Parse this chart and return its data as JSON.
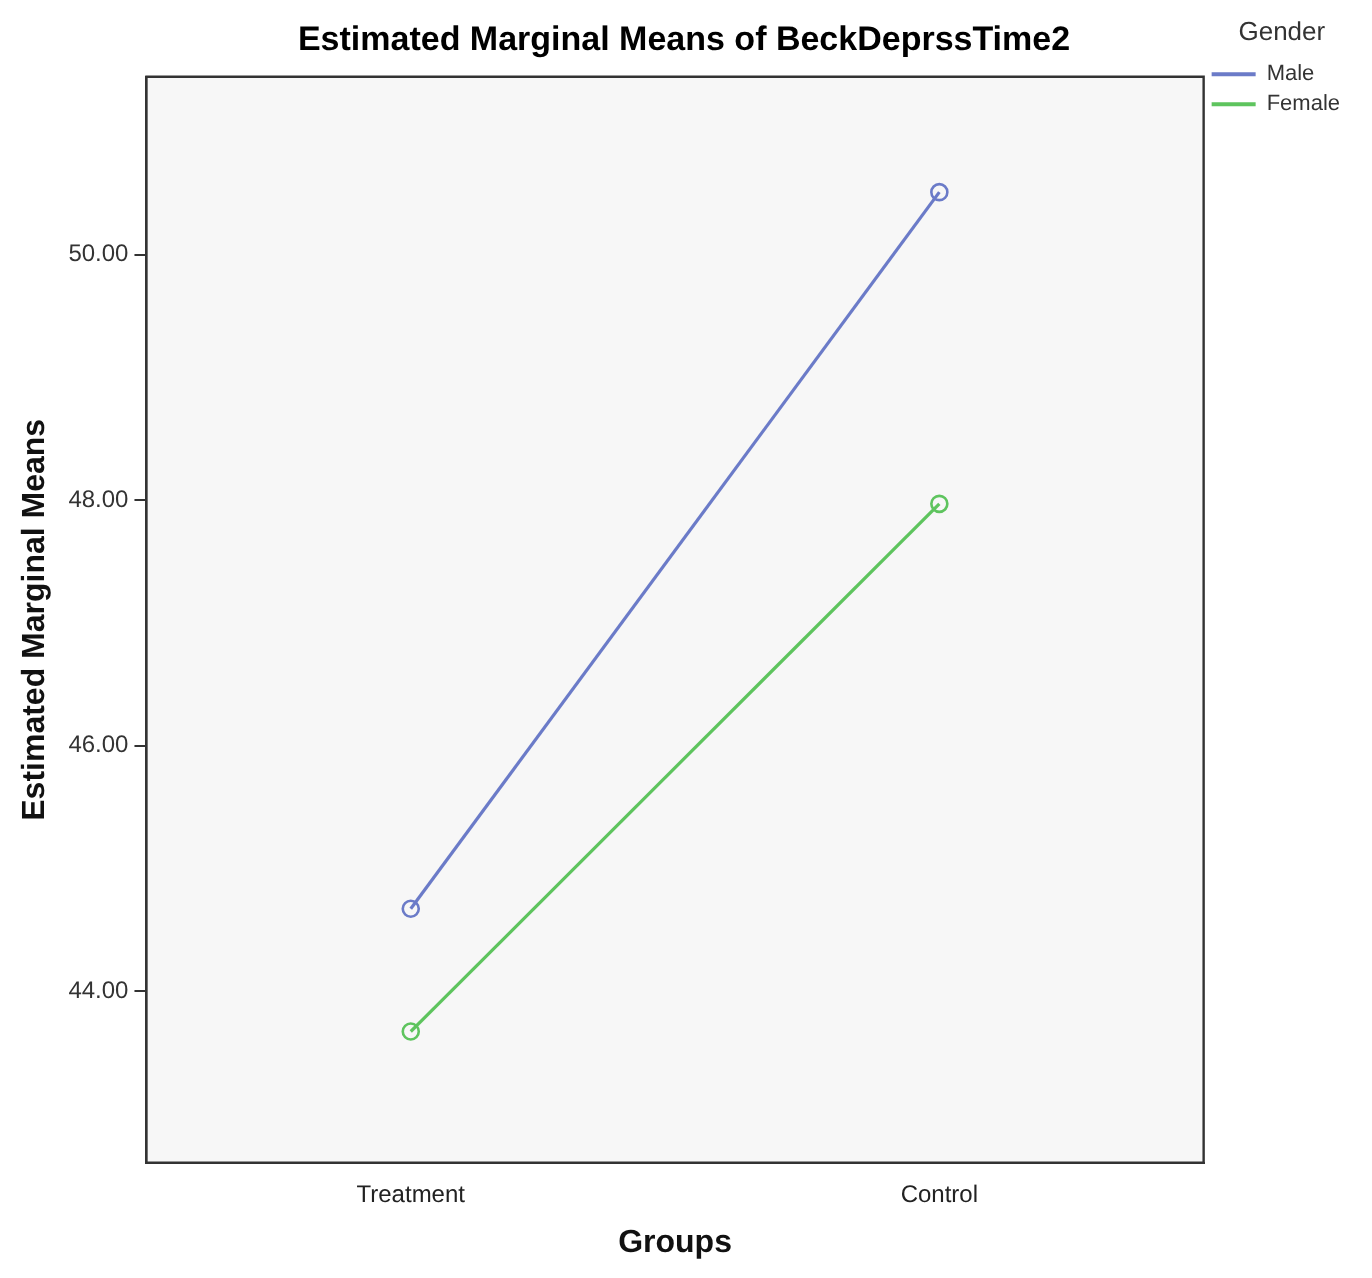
{
  "chart_data": {
    "type": "line",
    "title": "Estimated Marginal Means of BeckDeprssTime2",
    "xlabel": "Groups",
    "ylabel": "Estimated Marginal Means",
    "legend_title": "Gender",
    "categories": [
      "Treatment",
      "Control"
    ],
    "series": [
      {
        "name": "Male",
        "color": "#6b7bc8",
        "values": [
          44.67,
          50.51
        ]
      },
      {
        "name": "Female",
        "color": "#5ec45e",
        "values": [
          43.67,
          47.97
        ]
      }
    ],
    "ylim": [
      42.6,
      51.45
    ],
    "yticks": [
      {
        "value": 44,
        "label": "44.00"
      },
      {
        "value": 46,
        "label": "46.00"
      },
      {
        "value": 48,
        "label": "48.00"
      },
      {
        "value": 50,
        "label": "50.00"
      }
    ],
    "grid": false,
    "legend": "top right",
    "marker": "circle",
    "line_style": "solid"
  }
}
